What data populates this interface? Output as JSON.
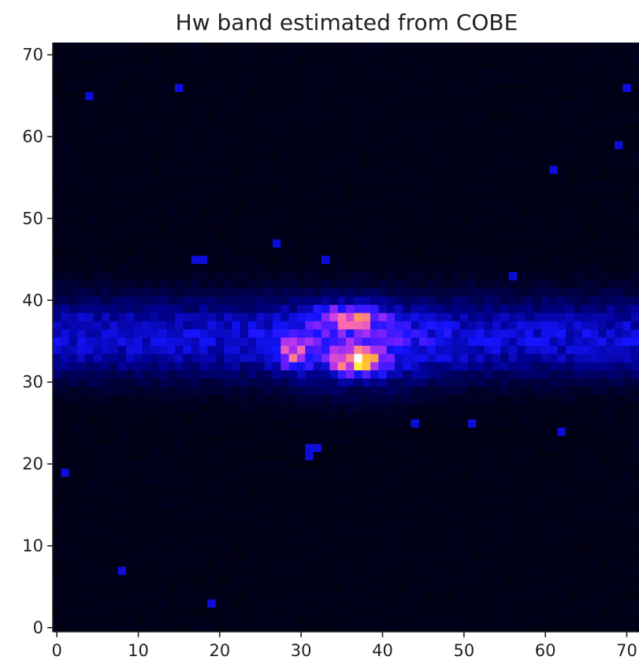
{
  "chart_data": {
    "type": "heatmap",
    "title": "Hw band estimated from COBE",
    "xlabel": "",
    "ylabel": "",
    "grid": false,
    "colormap": "gnuplot2",
    "origin": "lower",
    "xlim": [
      -0.5,
      71.5
    ],
    "ylim": [
      -0.5,
      71.5
    ],
    "xticks": [
      0,
      10,
      20,
      30,
      40,
      50,
      60,
      70
    ],
    "yticks": [
      0,
      10,
      20,
      30,
      40,
      50,
      60,
      70
    ],
    "xtick_labels": [
      "0",
      "10",
      "20",
      "30",
      "40",
      "50",
      "60",
      "70"
    ],
    "ytick_labels": [
      "0",
      "10",
      "20",
      "30",
      "40",
      "50",
      "60",
      "70"
    ],
    "grid_size": [
      72,
      72
    ],
    "features": [
      {
        "label": "galactic plane band",
        "y_center": 35.5,
        "y_width": 4.5,
        "intensity": 0.24
      },
      {
        "label": "bulge",
        "x_center": 37,
        "y_center": 34,
        "x_width": 9,
        "y_width": 5,
        "intensity": 0.14
      },
      {
        "label": "upper lobe",
        "x_center": 36,
        "y_center": 38,
        "x_width": 4,
        "y_width": 1.4,
        "intensity": 0.4
      },
      {
        "label": "left lobe",
        "x_center": 29,
        "y_center": 33.5,
        "x_width": 2,
        "y_width": 2,
        "intensity": 0.34
      },
      {
        "label": "core",
        "x_center": 37,
        "y_center": 32.5,
        "x_width": 3,
        "y_width": 1.5,
        "intensity": 0.55
      },
      {
        "label": "peak",
        "x_center": 37,
        "y_center": 33,
        "x_width": 0.8,
        "y_width": 0.8,
        "intensity": 0.3
      }
    ],
    "hot_pixels": [
      [
        17,
        45
      ],
      [
        18,
        45
      ],
      [
        27,
        47
      ],
      [
        31,
        22
      ],
      [
        32,
        22
      ],
      [
        31,
        21
      ],
      [
        33,
        45
      ],
      [
        15,
        66
      ],
      [
        70,
        66
      ],
      [
        4,
        65
      ],
      [
        3,
        38
      ],
      [
        8,
        7
      ],
      [
        61,
        56
      ],
      [
        56,
        43
      ],
      [
        62,
        24
      ],
      [
        19,
        3
      ],
      [
        1,
        19
      ],
      [
        44,
        25
      ],
      [
        51,
        25
      ],
      [
        69,
        59
      ]
    ],
    "value_range": [
      0,
      1
    ]
  }
}
